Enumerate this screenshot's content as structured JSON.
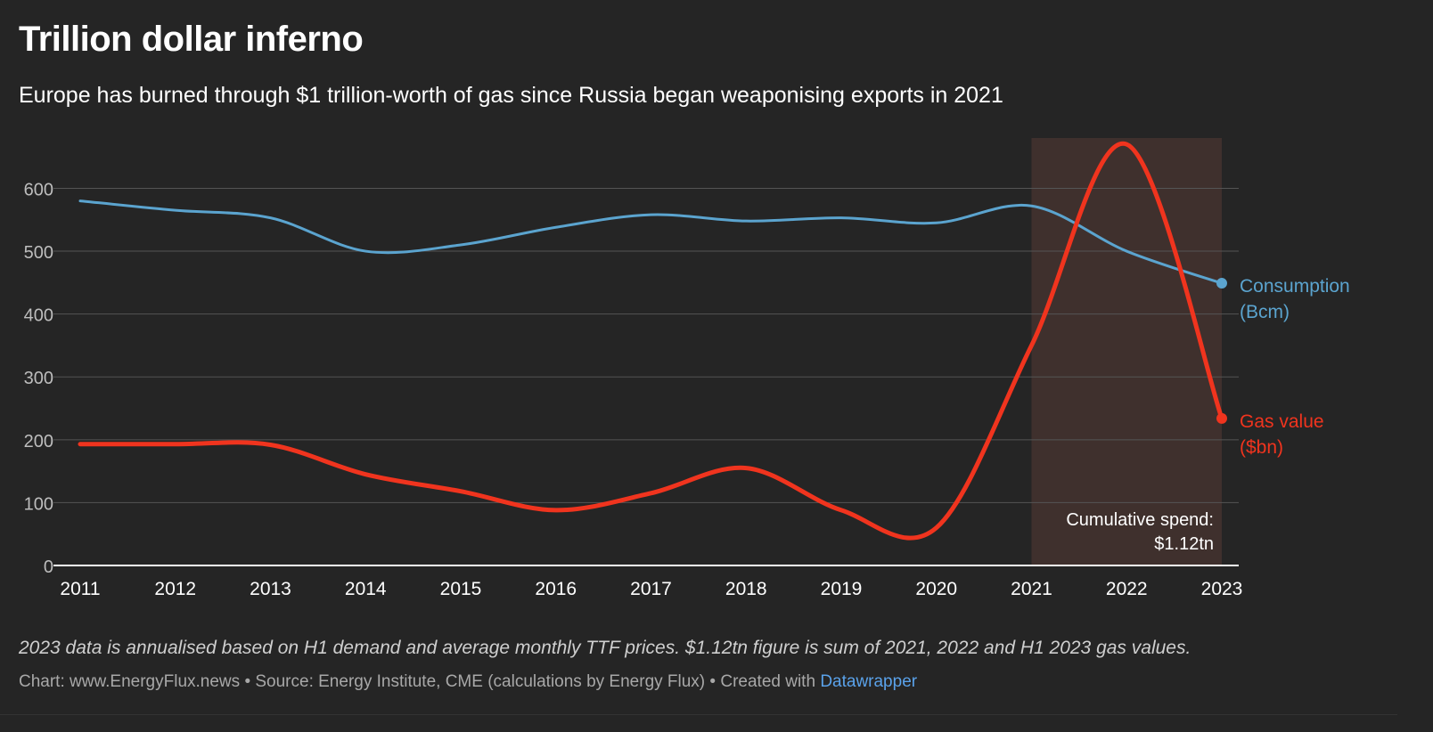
{
  "header": {
    "title": "Trillion dollar inferno",
    "subtitle": "Europe has burned through $1 trillion-worth of gas since Russia began weaponising exports in 2021"
  },
  "footer": {
    "note": "2023 data is annualised based on H1 demand and average monthly TTF prices. $1.12tn figure is sum of 2021, 2022 and H1 2023 gas values.",
    "chart_credit": "Chart: www.EnergyFlux.news",
    "separator": "•",
    "source": "Source: Energy Institute, CME (calculations by Energy Flux)",
    "created_with": "Created with",
    "tool_link": "Datawrapper"
  },
  "colors": {
    "background": "#252525",
    "consumption": "#5ba4cf",
    "gas_value": "#f0341e",
    "highlight": "#3f302d",
    "grid": "#555555",
    "axis_text": "#bdbdbd"
  },
  "chart_data": {
    "type": "line",
    "x": [
      2011,
      2012,
      2013,
      2014,
      2015,
      2016,
      2017,
      2018,
      2019,
      2020,
      2021,
      2022,
      2023
    ],
    "ylim": [
      0,
      680
    ],
    "yticks": [
      0,
      100,
      200,
      300,
      400,
      500,
      600
    ],
    "grid": true,
    "series": [
      {
        "name": "Consumption (Bcm)",
        "label_lines": [
          "Consumption",
          "(Bcm)"
        ],
        "color": "#5ba4cf",
        "values": [
          580,
          565,
          553,
          500,
          510,
          538,
          558,
          548,
          553,
          545,
          572,
          500,
          449
        ]
      },
      {
        "name": "Gas value ($bn)",
        "label_lines": [
          "Gas value",
          "($bn)"
        ],
        "color": "#f0341e",
        "values": [
          193,
          193,
          192,
          145,
          118,
          88,
          115,
          155,
          88,
          60,
          350,
          670,
          234
        ]
      }
    ],
    "highlight_range": [
      2021,
      2023
    ],
    "annotation": {
      "lines": [
        "Cumulative spend:",
        "$1.12tn"
      ]
    }
  }
}
